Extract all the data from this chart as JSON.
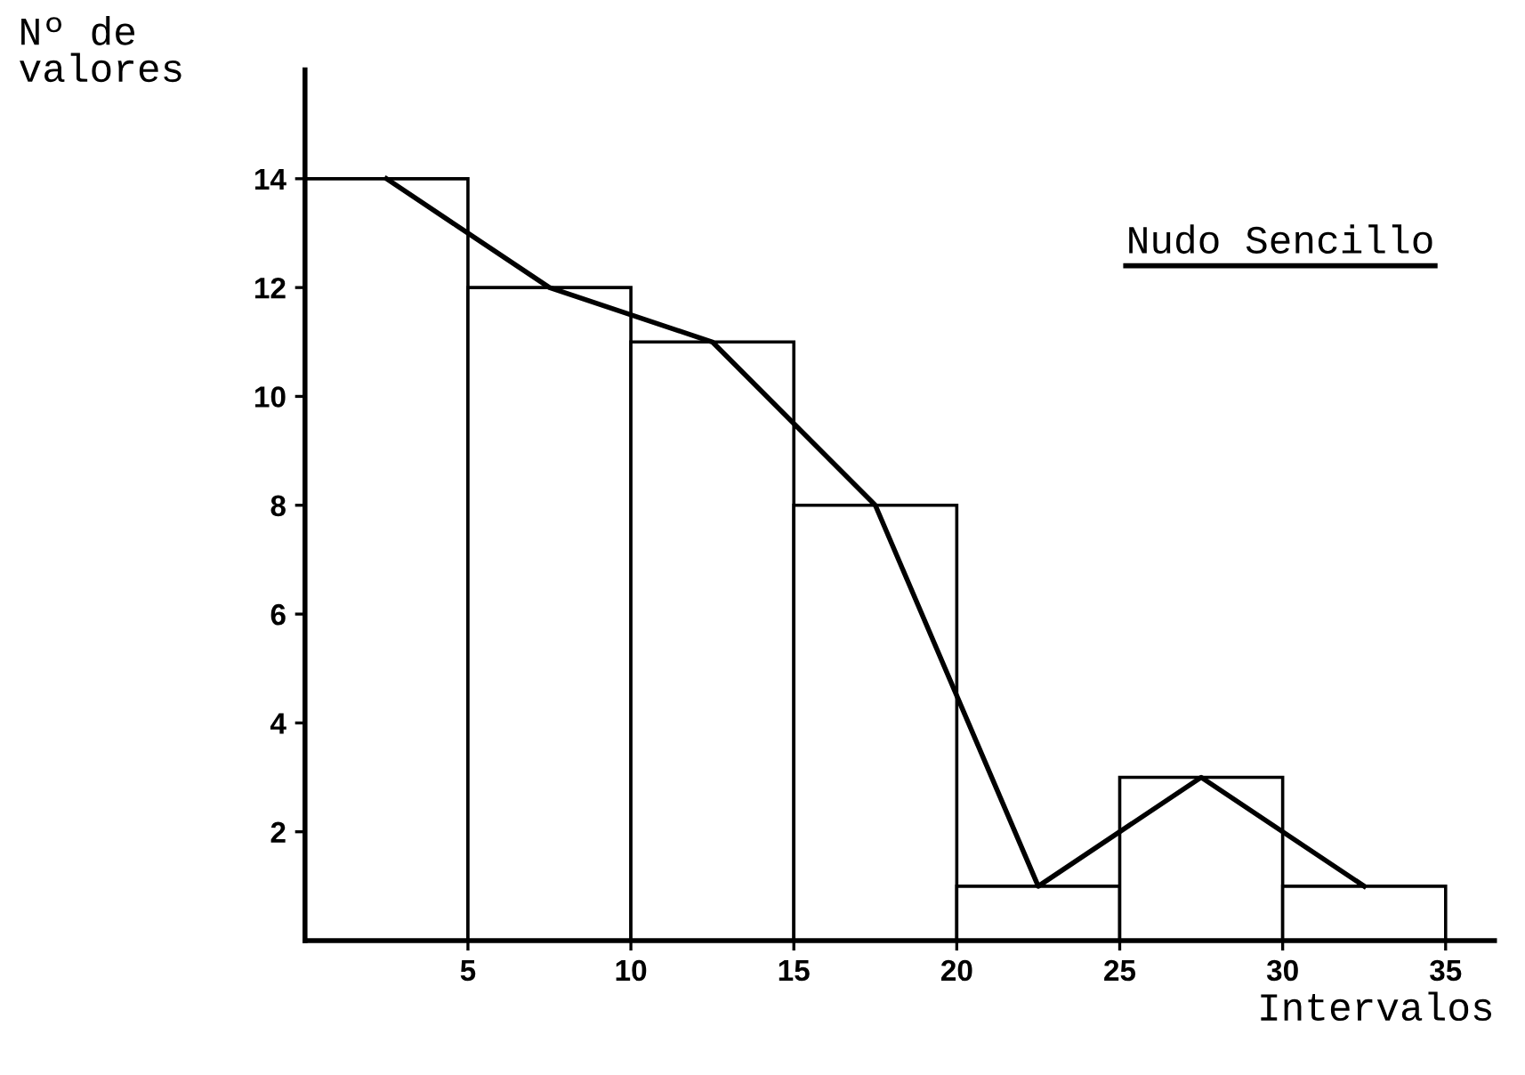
{
  "chart_data": {
    "type": "histogram",
    "title": "Nudo Sencillo",
    "xlabel": "Intervalos",
    "ylabel": "Nº de\nvalores",
    "bins": [
      0,
      5,
      10,
      15,
      20,
      25,
      30,
      35
    ],
    "values": [
      14,
      12,
      11,
      8,
      1,
      3,
      1
    ],
    "color": "#ffffff",
    "series": [
      {
        "type": "line",
        "x": [
          2.5,
          7.5,
          12.5,
          17.5,
          22.5,
          27.5,
          32.5
        ],
        "values": [
          14,
          12,
          11,
          8,
          1,
          3,
          1
        ],
        "color": "#000000"
      }
    ],
    "xlim": [
      0,
      36.5
    ],
    "ylim": [
      0,
      16
    ],
    "xticks": [
      5,
      10,
      15,
      20,
      25,
      30,
      35
    ],
    "yticks": [
      2,
      4,
      6,
      8,
      10,
      12,
      14
    ],
    "grid": false,
    "marker": "none",
    "line_style": "solid"
  }
}
